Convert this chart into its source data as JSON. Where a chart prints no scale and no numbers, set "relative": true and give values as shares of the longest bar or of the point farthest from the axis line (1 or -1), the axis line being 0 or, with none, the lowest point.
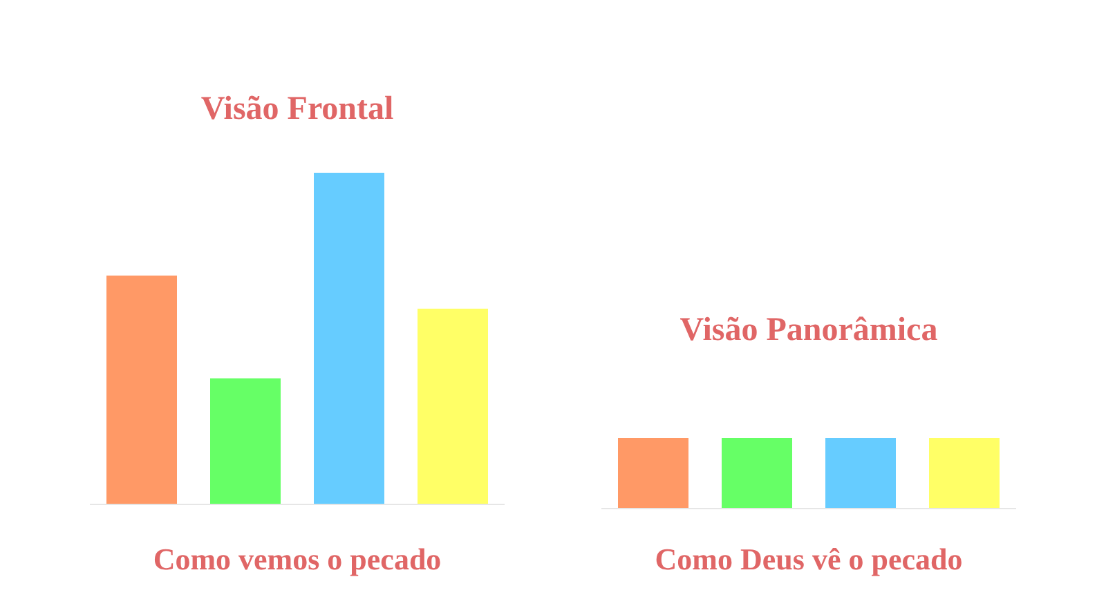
{
  "chart_data": [
    {
      "type": "bar",
      "title": "Visão Frontal",
      "xlabel": "Como vemos o pecado",
      "relative": true,
      "categories": [
        null,
        null,
        null,
        null
      ],
      "values": [
        0.69,
        0.38,
        1,
        0.59
      ],
      "colors": [
        "#ff9966",
        "#66ff66",
        "#66ccff",
        "#ffff66"
      ]
    },
    {
      "type": "bar",
      "title": "Visão Panorâmica",
      "xlabel": "Como Deus vê o pecado",
      "relative": true,
      "categories": [
        null,
        null,
        null,
        null
      ],
      "values": [
        1,
        1,
        1,
        1
      ],
      "colors": [
        "#ff9966",
        "#66ff66",
        "#66ccff",
        "#ffff66"
      ]
    }
  ]
}
